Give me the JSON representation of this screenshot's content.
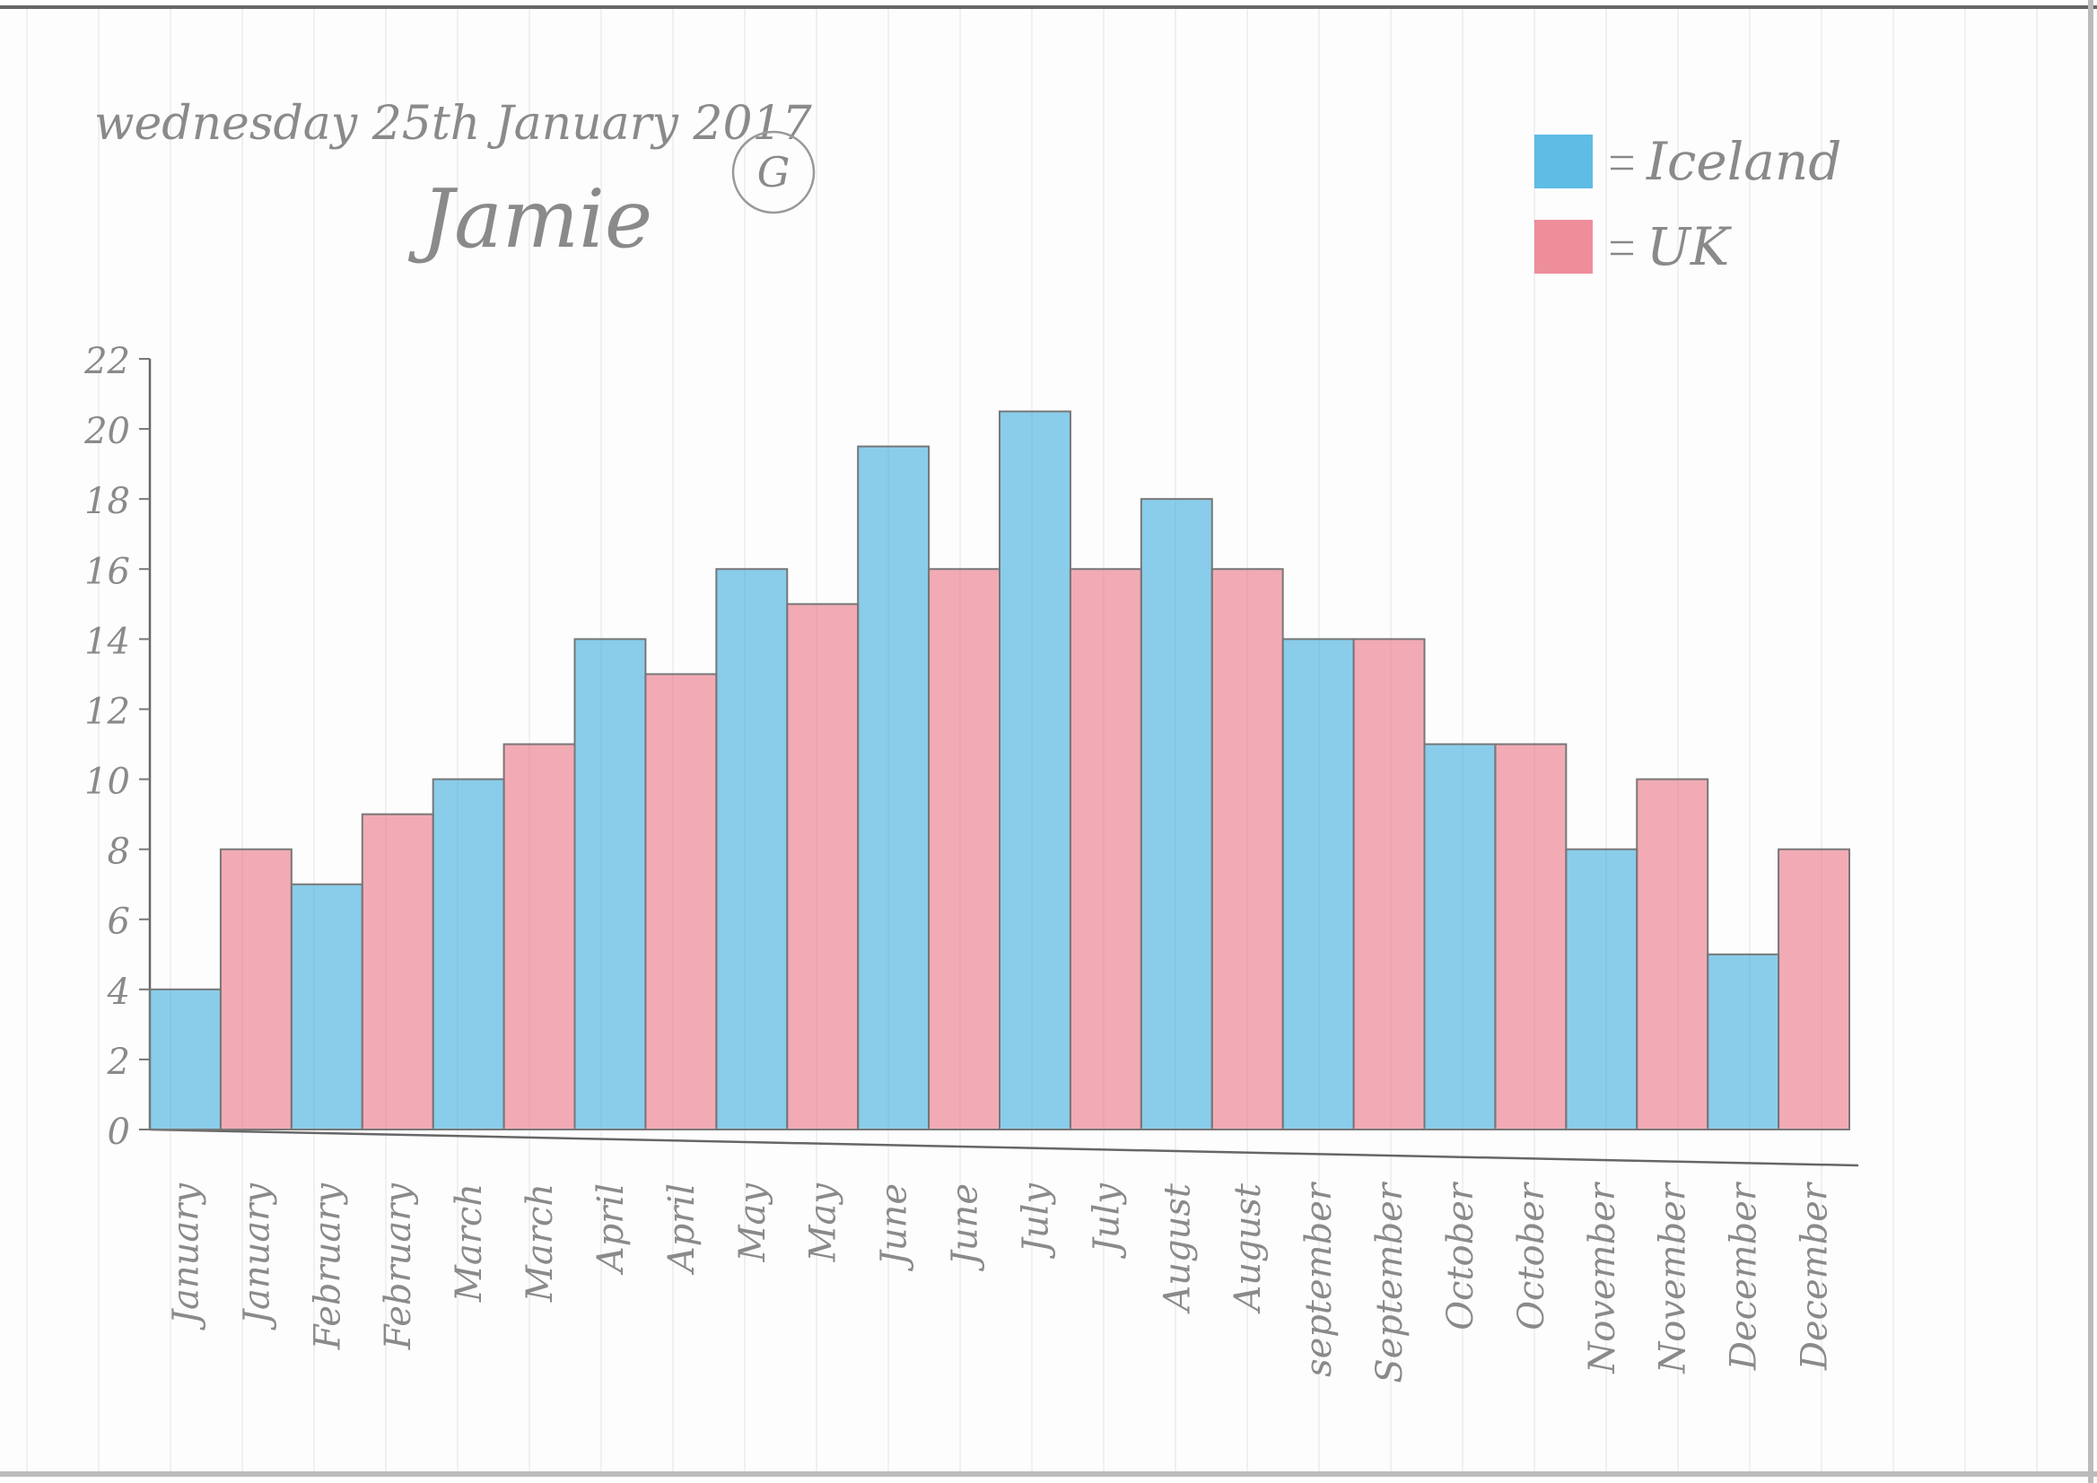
{
  "chart_data": {
    "type": "bar",
    "title": "wednesday 25th January 2017",
    "subtitle": "Jamie",
    "annotation": "G",
    "categories": [
      "January",
      "January",
      "February",
      "February",
      "March",
      "March",
      "April",
      "April",
      "May",
      "May",
      "June",
      "June",
      "July",
      "July",
      "August",
      "August",
      "september",
      "September",
      "October",
      "October",
      "November",
      "November",
      "December",
      "December"
    ],
    "series": [
      {
        "name": "Iceland",
        "color": "#2aa6dc",
        "values": [
          4,
          null,
          7,
          null,
          10,
          null,
          14,
          null,
          16,
          null,
          19.5,
          null,
          20.5,
          null,
          18,
          null,
          14,
          null,
          11,
          null,
          8,
          null,
          5,
          null
        ]
      },
      {
        "name": "UK",
        "color": "#e9687a",
        "values": [
          null,
          8,
          null,
          9,
          null,
          11,
          null,
          13,
          null,
          15,
          null,
          16,
          null,
          16,
          null,
          16,
          null,
          14,
          null,
          11,
          null,
          10,
          null,
          8
        ]
      }
    ],
    "ylim": [
      0,
      22
    ],
    "yticks": [
      0,
      2,
      4,
      6,
      8,
      10,
      12,
      14,
      16,
      18,
      20,
      22
    ],
    "legend": "top-right"
  }
}
